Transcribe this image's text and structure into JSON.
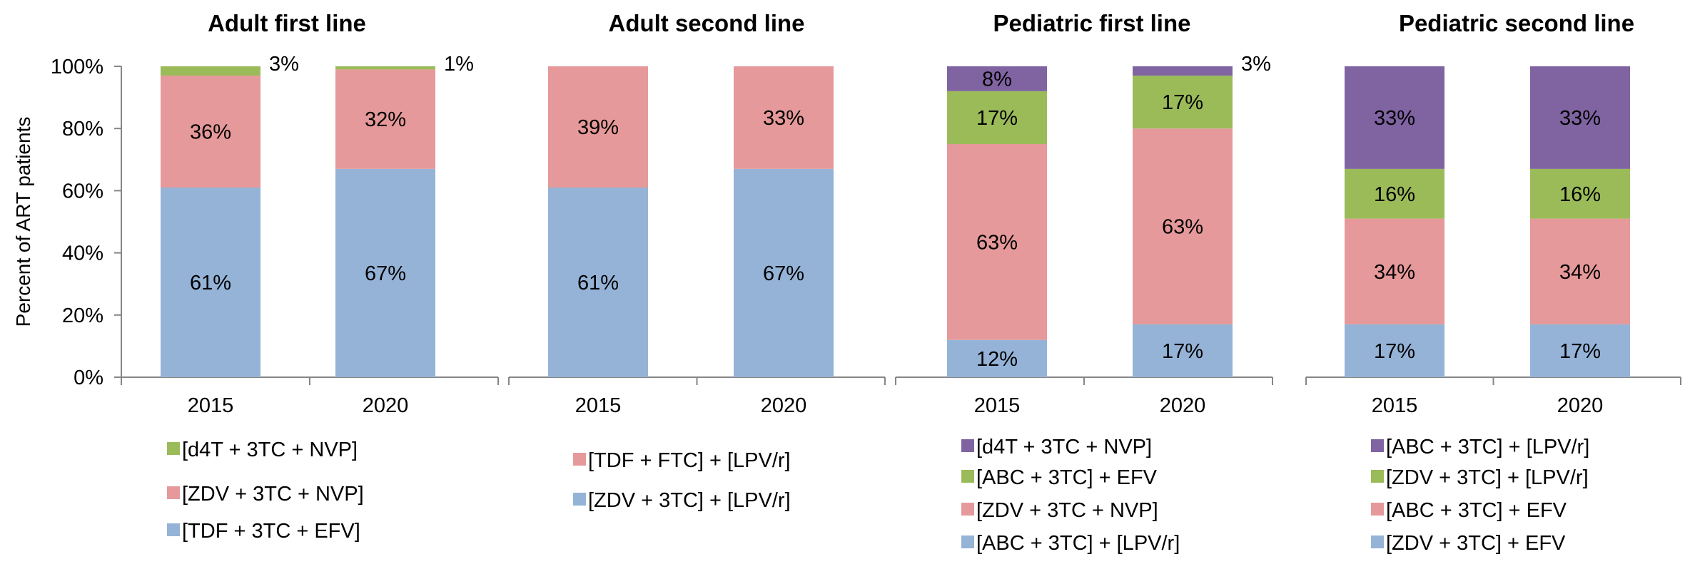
{
  "y_axis_label": "Percent of ART patients",
  "y_ticks": [
    "0%",
    "20%",
    "40%",
    "60%",
    "80%",
    "100%"
  ],
  "chart_data": [
    {
      "type": "bar",
      "stacked": true,
      "title": "Adult first line",
      "categories": [
        "2015",
        "2020"
      ],
      "ylabel": "Percent of ART patients",
      "ylim": [
        0,
        100
      ],
      "series": [
        {
          "name": "[TDF + 3TC + EFV]",
          "color": "#95b3d7",
          "values": [
            61,
            67
          ],
          "labels": [
            "61%",
            "67%"
          ]
        },
        {
          "name": "[ZDV + 3TC + NVP]",
          "color": "#e6999a",
          "values": [
            36,
            32
          ],
          "labels": [
            "36%",
            "32%"
          ]
        },
        {
          "name": "[d4T + 3TC + NVP]",
          "color": "#9bbb59",
          "values": [
            3,
            1
          ],
          "labels": [
            "3%",
            "1%"
          ]
        }
      ]
    },
    {
      "type": "bar",
      "stacked": true,
      "title": "Adult second line",
      "categories": [
        "2015",
        "2020"
      ],
      "ylim": [
        0,
        100
      ],
      "series": [
        {
          "name": "[ZDV + 3TC] + [LPV/r]",
          "color": "#95b3d7",
          "values": [
            61,
            67
          ],
          "labels": [
            "61%",
            "67%"
          ]
        },
        {
          "name": "[TDF + FTC] + [LPV/r]",
          "color": "#e6999a",
          "values": [
            39,
            33
          ],
          "labels": [
            "39%",
            "33%"
          ]
        }
      ]
    },
    {
      "type": "bar",
      "stacked": true,
      "title": "Pediatric first line",
      "categories": [
        "2015",
        "2020"
      ],
      "ylim": [
        0,
        100
      ],
      "series": [
        {
          "name": "[ABC + 3TC] + [LPV/r]",
          "color": "#95b3d7",
          "values": [
            12,
            17
          ],
          "labels": [
            "12%",
            "17%"
          ]
        },
        {
          "name": "[ZDV + 3TC + NVP]",
          "color": "#e6999a",
          "values": [
            63,
            63
          ],
          "labels": [
            "63%",
            "63%"
          ]
        },
        {
          "name": "[ABC + 3TC] + EFV",
          "color": "#9bbb59",
          "values": [
            17,
            17
          ],
          "labels": [
            "17%",
            "17%"
          ]
        },
        {
          "name": "[d4T + 3TC + NVP]",
          "color": "#8064a2",
          "values": [
            8,
            3
          ],
          "labels": [
            "8%",
            "3%"
          ]
        }
      ]
    },
    {
      "type": "bar",
      "stacked": true,
      "title": "Pediatric second line",
      "categories": [
        "2015",
        "2020"
      ],
      "ylim": [
        0,
        100
      ],
      "series": [
        {
          "name": "[ZDV + 3TC] + EFV",
          "color": "#95b3d7",
          "values": [
            17,
            17
          ],
          "labels": [
            "17%",
            "17%"
          ]
        },
        {
          "name": "[ABC + 3TC] + EFV",
          "color": "#e6999a",
          "values": [
            34,
            34
          ],
          "labels": [
            "34%",
            "34%"
          ]
        },
        {
          "name": "[ZDV + 3TC] + [LPV/r]",
          "color": "#9bbb59",
          "values": [
            16,
            16
          ],
          "labels": [
            "16%",
            "16%"
          ]
        },
        {
          "name": "[ABC + 3TC] + [LPV/r]",
          "color": "#8064a2",
          "values": [
            33,
            33
          ],
          "labels": [
            "33%",
            "33%"
          ]
        }
      ]
    }
  ]
}
